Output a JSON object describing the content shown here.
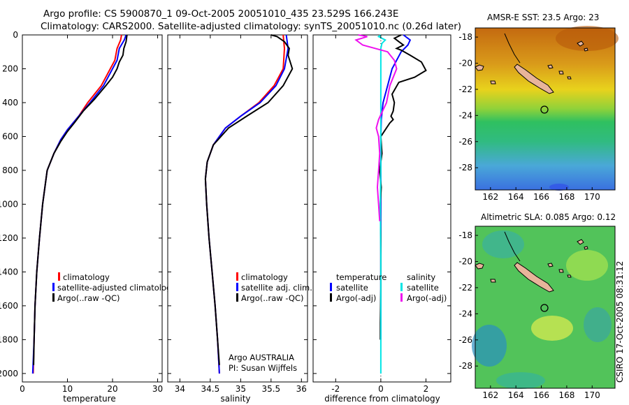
{
  "title_line1": "Argo profile: CS 5900870_1 09-Oct-2005 20051010_435 23.529S 166.243E",
  "title_line2": "Climatology: CARS2000. Satellite-adjusted climatology: synTS_20051010.nc (0.26d later)",
  "map_sst_title": "AMSR-E SST: 23.5 Argo: 23",
  "map_sla_title": "Altimetric SLA: 0.085 Argo: 0.12",
  "stamp": "CSIRO 17-Oct-2005 08:31:12",
  "colors": {
    "climatology": "#ff0000",
    "satellite": "#0000ff",
    "argo": "#000000",
    "sal_satellite": "#00e5e5",
    "sal_argo": "#ee11ee"
  },
  "chart_data": [
    {
      "type": "line",
      "xlabel": "temperature",
      "xlim": [
        0,
        31
      ],
      "ylim": [
        0,
        2050
      ],
      "y_reversed": true,
      "xticks": [
        "0",
        "10",
        "20",
        "30"
      ],
      "yticks": [
        "0",
        "200",
        "400",
        "600",
        "800",
        "1000",
        "1200",
        "1400",
        "1600",
        "1800",
        "2000"
      ],
      "legend": [
        "climatology",
        "satellite-adjusted climatology",
        "Argo(..raw -QC)"
      ],
      "series": [
        {
          "name": "climatology",
          "color": "#ff0000",
          "points": [
            [
              22.0,
              0
            ],
            [
              21.8,
              30
            ],
            [
              21.0,
              80
            ],
            [
              20.5,
              150
            ],
            [
              19.5,
              200
            ],
            [
              17.5,
              300
            ],
            [
              14.5,
              400
            ],
            [
              12.5,
              480
            ],
            [
              10.0,
              560
            ],
            [
              8.5,
              620
            ],
            [
              7.0,
              700
            ],
            [
              5.5,
              800
            ],
            [
              4.5,
              1000
            ],
            [
              3.8,
              1200
            ],
            [
              3.2,
              1400
            ],
            [
              2.8,
              1600
            ],
            [
              2.6,
              1800
            ],
            [
              2.4,
              2000
            ]
          ]
        },
        {
          "name": "satellite-adjusted climatology",
          "color": "#0000ff",
          "points": [
            [
              23.0,
              0
            ],
            [
              22.6,
              30
            ],
            [
              21.5,
              80
            ],
            [
              21.0,
              150
            ],
            [
              20.0,
              200
            ],
            [
              18.0,
              300
            ],
            [
              15.0,
              400
            ],
            [
              12.5,
              480
            ],
            [
              10.0,
              560
            ],
            [
              8.5,
              620
            ],
            [
              7.0,
              700
            ],
            [
              5.5,
              800
            ],
            [
              4.5,
              1000
            ],
            [
              3.8,
              1200
            ],
            [
              3.2,
              1400
            ],
            [
              2.8,
              1600
            ],
            [
              2.6,
              1800
            ],
            [
              2.3,
              2000
            ]
          ]
        },
        {
          "name": "Argo(..raw -QC)",
          "color": "#000000",
          "points": [
            [
              23.2,
              0
            ],
            [
              23.0,
              40
            ],
            [
              22.5,
              80
            ],
            [
              22.3,
              120
            ],
            [
              21.5,
              160
            ],
            [
              21.0,
              200
            ],
            [
              20.0,
              250
            ],
            [
              18.5,
              300
            ],
            [
              16.0,
              380
            ],
            [
              13.5,
              450
            ],
            [
              11.5,
              520
            ],
            [
              10.0,
              570
            ],
            [
              8.5,
              630
            ],
            [
              7.0,
              700
            ],
            [
              5.5,
              800
            ],
            [
              4.5,
              1000
            ],
            [
              3.8,
              1200
            ],
            [
              3.2,
              1400
            ],
            [
              2.8,
              1600
            ],
            [
              2.6,
              1800
            ],
            [
              2.5,
              1950
            ]
          ]
        }
      ]
    },
    {
      "type": "line",
      "xlabel": "salinity",
      "xlim": [
        33.8,
        36.1
      ],
      "ylim": [
        0,
        2050
      ],
      "y_reversed": true,
      "xticks": [
        "34",
        "34.5",
        "35",
        "35.5",
        "36"
      ],
      "legend": [
        "climatology",
        "satellite adj. clim.",
        "Argo(..raw -QC)"
      ],
      "annotation": [
        "Argo AUSTRALIA",
        "PI: Susan Wijffels"
      ],
      "series": [
        {
          "name": "climatology",
          "color": "#ff0000",
          "points": [
            [
              35.7,
              0
            ],
            [
              35.72,
              80
            ],
            [
              35.7,
              200
            ],
            [
              35.55,
              300
            ],
            [
              35.3,
              400
            ],
            [
              35.0,
              480
            ],
            [
              34.75,
              550
            ],
            [
              34.55,
              650
            ],
            [
              34.45,
              750
            ],
            [
              34.42,
              850
            ],
            [
              34.44,
              1000
            ],
            [
              34.48,
              1200
            ],
            [
              34.53,
              1400
            ],
            [
              34.58,
              1600
            ],
            [
              34.62,
              1800
            ],
            [
              34.65,
              2000
            ]
          ]
        },
        {
          "name": "satellite adj. clim.",
          "color": "#0000ff",
          "points": [
            [
              35.75,
              0
            ],
            [
              35.78,
              80
            ],
            [
              35.72,
              200
            ],
            [
              35.58,
              300
            ],
            [
              35.32,
              400
            ],
            [
              35.0,
              480
            ],
            [
              34.75,
              550
            ],
            [
              34.55,
              650
            ],
            [
              34.45,
              750
            ],
            [
              34.42,
              850
            ],
            [
              34.44,
              1000
            ],
            [
              34.48,
              1200
            ],
            [
              34.53,
              1400
            ],
            [
              34.58,
              1600
            ],
            [
              34.62,
              1800
            ],
            [
              34.65,
              2000
            ]
          ]
        },
        {
          "name": "Argo(..raw -QC)",
          "color": "#000000",
          "points": [
            [
              35.5,
              0
            ],
            [
              35.6,
              10
            ],
            [
              35.72,
              40
            ],
            [
              35.8,
              80
            ],
            [
              35.78,
              120
            ],
            [
              35.85,
              200
            ],
            [
              35.7,
              300
            ],
            [
              35.45,
              400
            ],
            [
              35.1,
              480
            ],
            [
              34.8,
              550
            ],
            [
              34.55,
              650
            ],
            [
              34.45,
              750
            ],
            [
              34.42,
              850
            ],
            [
              34.44,
              1000
            ],
            [
              34.48,
              1200
            ],
            [
              34.53,
              1400
            ],
            [
              34.58,
              1600
            ],
            [
              34.62,
              1800
            ],
            [
              34.65,
              1950
            ]
          ]
        }
      ]
    },
    {
      "type": "line",
      "xlabel": "difference from climatology",
      "xlim": [
        -3,
        3.1
      ],
      "ylim": [
        0,
        2050
      ],
      "y_reversed": true,
      "xticks": [
        "-2",
        "0",
        "2"
      ],
      "legend_left_title": "temperature",
      "legend_right_title": "salinity",
      "legend": [
        "satellite",
        "Argo(-adj)",
        "satellite",
        "Argo(-adj)"
      ],
      "series": [
        {
          "name": "satellite",
          "group": "temperature",
          "color": "#0000ff",
          "points": [
            [
              1.0,
              0
            ],
            [
              1.3,
              30
            ],
            [
              1.2,
              60
            ],
            [
              0.9,
              100
            ],
            [
              0.5,
              200
            ],
            [
              0.3,
              300
            ],
            [
              0.1,
              400
            ],
            [
              0.02,
              500
            ],
            [
              0,
              600
            ],
            [
              0,
              1000
            ],
            [
              0,
              1400
            ],
            [
              0,
              1800
            ]
          ]
        },
        {
          "name": "Argo(-adj)",
          "group": "temperature",
          "color": "#000000",
          "points": [
            [
              0.9,
              0
            ],
            [
              0.6,
              20
            ],
            [
              0.8,
              40
            ],
            [
              1.0,
              60
            ],
            [
              0.7,
              80
            ],
            [
              0.9,
              90
            ],
            [
              1.3,
              120
            ],
            [
              1.8,
              160
            ],
            [
              2.0,
              210
            ],
            [
              1.5,
              250
            ],
            [
              0.8,
              280
            ],
            [
              0.5,
              350
            ],
            [
              0.6,
              400
            ],
            [
              0.55,
              450
            ],
            [
              0.45,
              480
            ],
            [
              0.55,
              500
            ],
            [
              0.4,
              520
            ],
            [
              0.2,
              560
            ],
            [
              0.0,
              600
            ],
            [
              0.05,
              700
            ],
            [
              -0.05,
              800
            ],
            [
              0.02,
              900
            ],
            [
              -0.02,
              1000
            ],
            [
              0.0,
              1200
            ],
            [
              0.0,
              1500
            ],
            [
              -0.02,
              1700
            ],
            [
              -0.02,
              1800
            ]
          ]
        },
        {
          "name": "satellite",
          "group": "salinity",
          "color": "#00e5e5",
          "points": [
            [
              0,
              0
            ],
            [
              -0.1,
              10
            ],
            [
              0.2,
              30
            ],
            [
              0.05,
              50
            ],
            [
              0.0,
              80
            ],
            [
              0.0,
              200
            ],
            [
              0.0,
              600
            ],
            [
              0.0,
              800
            ],
            [
              -0.02,
              1000
            ],
            [
              0,
              1300
            ],
            [
              0,
              1600
            ],
            [
              0,
              2000
            ]
          ]
        },
        {
          "name": "Argo(-adj)",
          "group": "salinity",
          "color": "#ee11ee",
          "points": [
            [
              -1.0,
              0
            ],
            [
              -0.6,
              10
            ],
            [
              -1.1,
              30
            ],
            [
              -0.8,
              60
            ],
            [
              0.3,
              100
            ],
            [
              0.6,
              150
            ],
            [
              0.7,
              200
            ],
            [
              0.4,
              300
            ],
            [
              0.25,
              400
            ],
            [
              -0.1,
              500
            ],
            [
              -0.2,
              550
            ],
            [
              -0.1,
              600
            ],
            [
              -0.05,
              700
            ],
            [
              -0.1,
              800
            ],
            [
              -0.15,
              900
            ],
            [
              -0.1,
              1000
            ],
            [
              -0.05,
              1100
            ]
          ]
        }
      ]
    },
    {
      "type": "heatmap",
      "title": "AMSR-E SST: 23.5 Argo: 23",
      "xticks": [
        "162",
        "164",
        "166",
        "168",
        "170"
      ],
      "yticks": [
        "-18",
        "-20",
        "-22",
        "-24",
        "-26",
        "-28"
      ],
      "xlim": [
        160.8,
        171.8
      ],
      "ylim": [
        -29.7,
        -17.3
      ],
      "argo_position": [
        166.243,
        -23.529
      ]
    },
    {
      "type": "heatmap",
      "title": "Altimetric SLA: 0.085 Argo: 0.12",
      "xticks": [
        "162",
        "164",
        "166",
        "168",
        "170"
      ],
      "yticks": [
        "-18",
        "-20",
        "-22",
        "-24",
        "-26",
        "-28"
      ],
      "xlim": [
        160.8,
        171.8
      ],
      "ylim": [
        -29.7,
        -17.3
      ],
      "argo_position": [
        166.243,
        -23.529
      ]
    }
  ]
}
